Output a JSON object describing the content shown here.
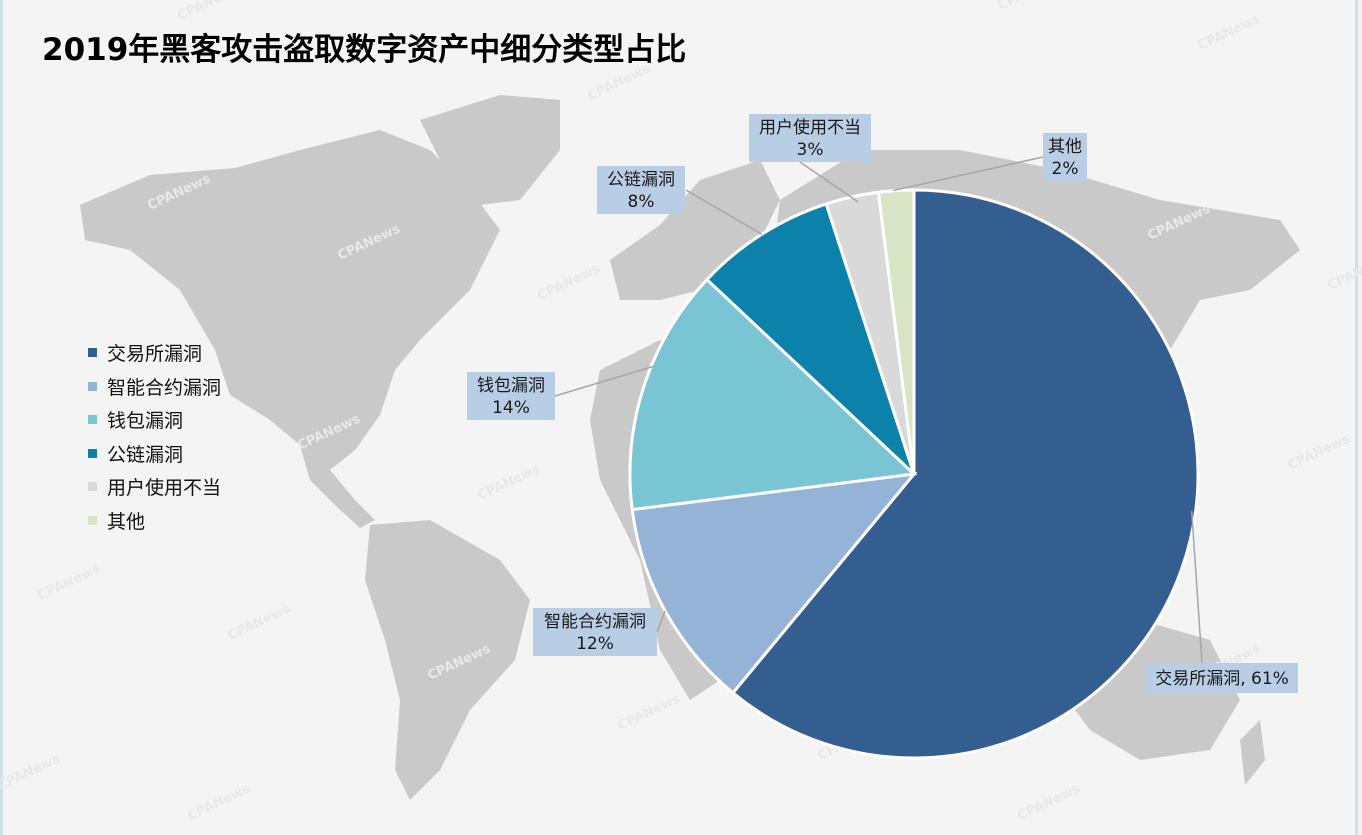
{
  "title": "2019年黑客攻击盗取数字资产中细分类型占比",
  "watermark": "PANews",
  "colors": {
    "background": "#f4f4f4",
    "map": "#c8c8c8",
    "label_box": "#b9cde5"
  },
  "chart_data": {
    "type": "pie",
    "title": "2019年黑客攻击盗取数字资产中细分类型占比",
    "legend_position": "left",
    "slices": [
      {
        "name": "交易所漏洞",
        "value": 61,
        "label": "61%",
        "color": "#355e90"
      },
      {
        "name": "智能合约漏洞",
        "value": 12,
        "label": "12%",
        "color": "#95b2d7"
      },
      {
        "name": "钱包漏洞",
        "value": 14,
        "label": "14%",
        "color": "#79c5d3"
      },
      {
        "name": "公链漏洞",
        "value": 8,
        "label": "8%",
        "color": "#0c82ab"
      },
      {
        "name": "用户使用不当",
        "value": 3,
        "label": "3%",
        "color": "#d9d9d9"
      },
      {
        "name": "其他",
        "value": 2,
        "label": "2%",
        "color": "#d9e3c6"
      }
    ]
  }
}
